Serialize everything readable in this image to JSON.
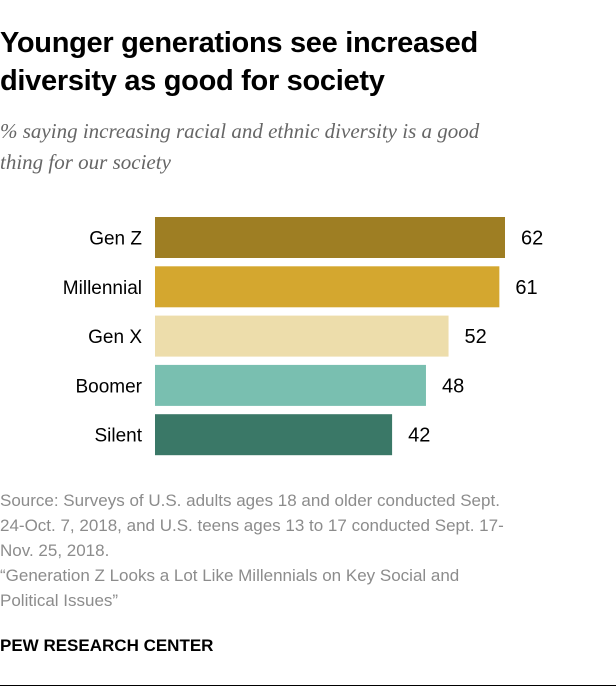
{
  "title_lines": [
    "Younger generations see increased",
    "diversity as good for society"
  ],
  "subtitle_lines": [
    "% saying increasing racial and ethnic diversity is a good",
    "thing for our society"
  ],
  "chart_data": {
    "type": "bar",
    "orientation": "horizontal",
    "categories": [
      "Gen Z",
      "Millennial",
      "Gen X",
      "Boomer",
      "Silent"
    ],
    "values": [
      62,
      61,
      52,
      48,
      42
    ],
    "colors": [
      "#9e7e23",
      "#d4a72f",
      "#edddab",
      "#79bfb0",
      "#3a7867"
    ],
    "xlim": [
      0,
      62
    ],
    "grid": false,
    "data_labels": true
  },
  "source_lines": [
    "Source: Surveys of U.S. adults ages 18 and older conducted Sept.",
    "24-Oct. 7, 2018, and U.S. teens ages 13 to 17 conducted Sept. 17-",
    "Nov. 25, 2018.",
    "“Generation Z Looks a Lot Like Millennials on Key Social and",
    "Political Issues”"
  ],
  "brand": "PEW RESEARCH CENTER"
}
